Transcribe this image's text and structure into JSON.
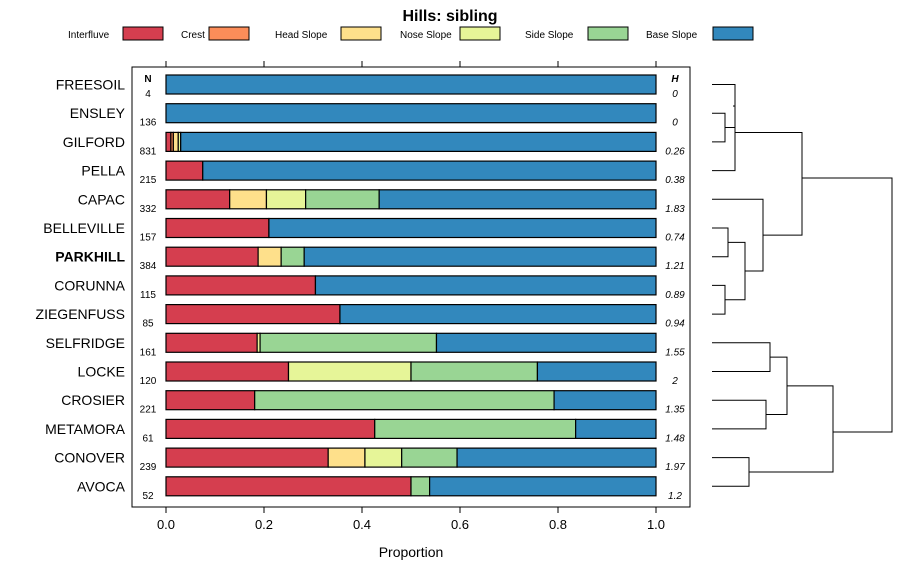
{
  "chart_data": {
    "type": "bar",
    "subtype": "stacked-horizontal-proportion",
    "title": "Hills: sibling",
    "xlabel": "Proportion",
    "ylabel": "",
    "xlim": [
      0,
      1
    ],
    "x_ticks": [
      "0.0",
      "0.2",
      "0.4",
      "0.6",
      "0.8",
      "1.0"
    ],
    "n_header": "N",
    "h_header": "H",
    "legend_position": "top",
    "series": [
      {
        "name": "Interfluve",
        "color": "#D53E4F"
      },
      {
        "name": "Crest",
        "color": "#FC8D59"
      },
      {
        "name": "Head Slope",
        "color": "#FEE08B"
      },
      {
        "name": "Nose Slope",
        "color": "#E6F598"
      },
      {
        "name": "Side Slope",
        "color": "#99D594"
      },
      {
        "name": "Base Slope",
        "color": "#3288BD"
      }
    ],
    "rows": [
      {
        "name": "FREESOIL",
        "n": "4",
        "h": "0",
        "bold": false,
        "values": [
          0.0,
          0.0,
          0.0,
          0.0,
          0.0,
          1.0
        ]
      },
      {
        "name": "ENSLEY",
        "n": "136",
        "h": "0",
        "bold": false,
        "values": [
          0.0,
          0.0,
          0.0,
          0.0,
          0.0,
          1.0
        ]
      },
      {
        "name": "GILFORD",
        "n": "831",
        "h": "0.26",
        "bold": false,
        "values": [
          0.01,
          0.005,
          0.01,
          0.005,
          0.0,
          0.97
        ]
      },
      {
        "name": "PELLA",
        "n": "215",
        "h": "0.38",
        "bold": false,
        "values": [
          0.075,
          0.0,
          0.0,
          0.0,
          0.0,
          0.925
        ]
      },
      {
        "name": "CAPAC",
        "n": "332",
        "h": "1.83",
        "bold": false,
        "values": [
          0.13,
          0.0,
          0.075,
          0.08,
          0.15,
          0.565
        ]
      },
      {
        "name": "BELLEVILLE",
        "n": "157",
        "h": "0.74",
        "bold": false,
        "values": [
          0.21,
          0.0,
          0.0,
          0.0,
          0.0,
          0.79
        ]
      },
      {
        "name": "PARKHILL",
        "n": "384",
        "h": "1.21",
        "bold": true,
        "values": [
          0.188,
          0.0,
          0.047,
          0.0,
          0.047,
          0.718
        ]
      },
      {
        "name": "CORUNNA",
        "n": "115",
        "h": "0.89",
        "bold": false,
        "values": [
          0.305,
          0.0,
          0.0,
          0.0,
          0.0,
          0.695
        ]
      },
      {
        "name": "ZIEGENFUSS",
        "n": "85",
        "h": "0.94",
        "bold": false,
        "values": [
          0.355,
          0.0,
          0.0,
          0.0,
          0.0,
          0.645
        ]
      },
      {
        "name": "SELFRIDGE",
        "n": "161",
        "h": "1.55",
        "bold": false,
        "values": [
          0.186,
          0.0,
          0.0,
          0.006,
          0.36,
          0.448
        ]
      },
      {
        "name": "LOCKE",
        "n": "120",
        "h": "2",
        "bold": false,
        "values": [
          0.25,
          0.0,
          0.0,
          0.25,
          0.258,
          0.242
        ]
      },
      {
        "name": "CROSIER",
        "n": "221",
        "h": "1.35",
        "bold": false,
        "values": [
          0.181,
          0.0,
          0.0,
          0.0,
          0.611,
          0.208
        ]
      },
      {
        "name": "METAMORA",
        "n": "61",
        "h": "1.48",
        "bold": false,
        "values": [
          0.426,
          0.0,
          0.0,
          0.0,
          0.41,
          0.164
        ]
      },
      {
        "name": "CONOVER",
        "n": "239",
        "h": "1.97",
        "bold": false,
        "values": [
          0.331,
          0.0,
          0.075,
          0.075,
          0.113,
          0.406
        ]
      },
      {
        "name": "AVOCA",
        "n": "52",
        "h": "1.2",
        "bold": false,
        "values": [
          0.5,
          0.0,
          0.0,
          0.0,
          0.038,
          0.462
        ]
      }
    ]
  }
}
